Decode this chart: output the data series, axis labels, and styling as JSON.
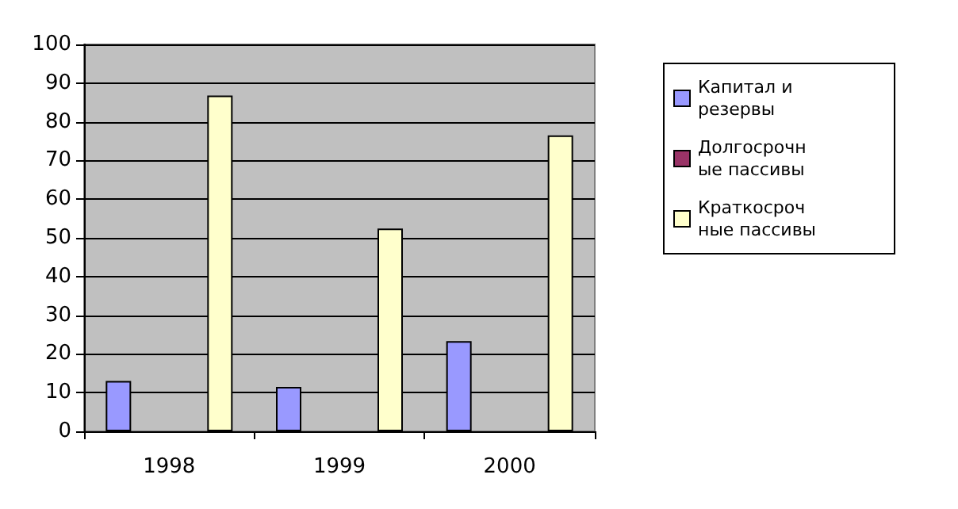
{
  "chart_data": {
    "type": "bar",
    "categories": [
      "1998",
      "1999",
      "2000"
    ],
    "series": [
      {
        "name": "Капитал и резервы",
        "color": "#9999ff",
        "values": [
          13,
          11.5,
          23.3
        ]
      },
      {
        "name": "Долгосрочные пассивы",
        "color": "#993366",
        "values": [
          0,
          0,
          0
        ]
      },
      {
        "name": "Краткосрочные пассивы",
        "color": "#ffffcc",
        "values": [
          86.8,
          52.4,
          76.5
        ]
      }
    ],
    "ylim": [
      0,
      100
    ],
    "yticks": [
      0,
      10,
      20,
      30,
      40,
      50,
      60,
      70,
      80,
      90,
      100
    ],
    "grid": "y",
    "legend": "right"
  }
}
